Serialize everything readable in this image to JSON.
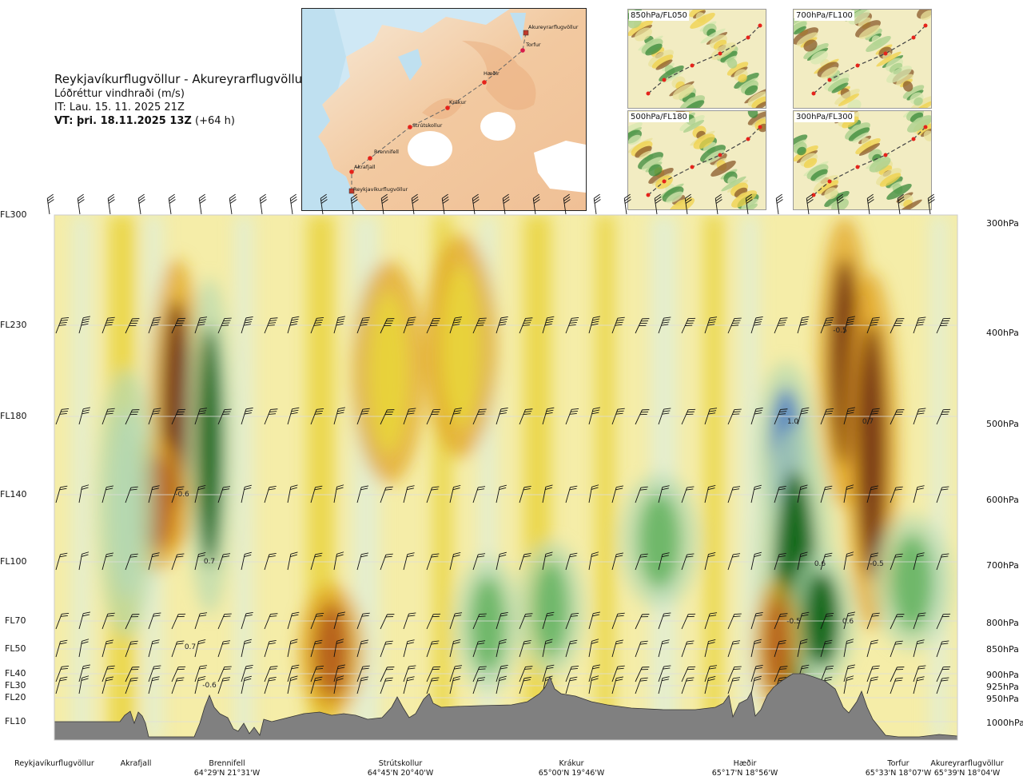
{
  "header": {
    "route": "Reykjavíkurflugvöllur - Akureyrarflugvöllur",
    "parameter": "Lóðréttur vindhraði (m/s)",
    "issue_time": "IT: Lau. 15. 11. 2025 21Z",
    "valid_prefix": "VT: þri. 18.11.2025 13Z",
    "valid_suffix": "(+64 h)"
  },
  "map": {
    "waypoints": [
      {
        "name": "Akureyrarflugvöllur"
      },
      {
        "name": "Torfur"
      },
      {
        "name": "Hæðir"
      },
      {
        "name": "Krákur"
      },
      {
        "name": "Strútskollur"
      },
      {
        "name": "Brennifell"
      },
      {
        "name": "Akrafjall"
      },
      {
        "name": "Reykjavíkurflugvöllur"
      }
    ]
  },
  "thumbnails": [
    {
      "label": "850hPa/FL050"
    },
    {
      "label": "700hPa/FL100"
    },
    {
      "label": "500hPa/FL180"
    },
    {
      "label": "300hPa/FL300"
    }
  ],
  "left_axis": [
    "FL300",
    "FL230",
    "FL180",
    "FL140",
    "FL100",
    "FL70",
    "FL50",
    "FL40",
    "FL30",
    "FL20",
    "FL10"
  ],
  "right_axis": [
    "300hPa",
    "400hPa",
    "500hPa",
    "600hPa",
    "700hPa",
    "800hPa",
    "850hPa",
    "900hPa",
    "925hPa",
    "950hPa",
    "1000hPa"
  ],
  "bottom_locations": [
    {
      "name": "Reykjavíkurflugvöllur",
      "coord": ""
    },
    {
      "name": "Akrafjall",
      "coord": ""
    },
    {
      "name": "Brennifell",
      "coord": "64°29'N 21°31'W"
    },
    {
      "name": "Strútskollur",
      "coord": "64°45'N 20°40'W"
    },
    {
      "name": "Krákur",
      "coord": "65°00'N 19°46'W"
    },
    {
      "name": "Hæðir",
      "coord": "65°17'N 18°56'W"
    },
    {
      "name": "Torfur",
      "coord": "65°33'N 18°07'W"
    },
    {
      "name": "Akureyrarflugvöllur",
      "coord": "65°39'N 18°04'W"
    }
  ],
  "colors": {
    "strong_down": "#7a3a12",
    "down3": "#b8641c",
    "down2": "#e0a01e",
    "down1": "#e8d23a",
    "weak_down": "#f5eda8",
    "weak_up": "#e0eed8",
    "up1": "#b5d8b0",
    "up2": "#6fb86a",
    "up3": "#1a8a2a",
    "up4": "#126b1e",
    "strong_up": "#5a88c0",
    "terrain": "#808080"
  },
  "chart_data": {
    "type": "heatmap",
    "title": "Lóðréttur vindhraði (m/s)",
    "xlabel": "",
    "ylabel": "",
    "x_stations": [
      "Reykjavíkurflugvöllur",
      "Akrafjall",
      "Brennifell",
      "Strútskollur",
      "Krákur",
      "Hæðir",
      "Torfur",
      "Akureyrarflugvöllur"
    ],
    "y_levels_hPa": [
      300,
      400,
      500,
      600,
      700,
      800,
      850,
      900,
      925,
      950,
      1000
    ],
    "contour_labels": [
      "-0.6",
      "0.7",
      "0.7",
      "-0.6",
      "-0.5",
      "1.0",
      "0.7",
      "0.6",
      "-0.5",
      "-0.5",
      "0.6"
    ],
    "blobs": [
      {
        "x": 0.135,
        "y": 0.36,
        "value": -0.6
      },
      {
        "x": 0.172,
        "y": 0.44,
        "value": 0.7
      },
      {
        "x": 0.112,
        "y": 0.55,
        "value": -0.4
      },
      {
        "x": 0.307,
        "y": 0.83,
        "value": -0.4
      },
      {
        "x": 0.37,
        "y": 0.3,
        "value": -0.2
      },
      {
        "x": 0.45,
        "y": 0.25,
        "value": -0.2
      },
      {
        "x": 0.08,
        "y": 0.55,
        "value": 0.2
      },
      {
        "x": 0.48,
        "y": 0.78,
        "value": 0.25
      },
      {
        "x": 0.55,
        "y": 0.75,
        "value": 0.25
      },
      {
        "x": 0.67,
        "y": 0.62,
        "value": 0.3
      },
      {
        "x": 0.81,
        "y": 0.45,
        "value": 1.0
      },
      {
        "x": 0.82,
        "y": 0.7,
        "value": 0.8
      },
      {
        "x": 0.85,
        "y": 0.77,
        "value": 0.6
      },
      {
        "x": 0.875,
        "y": 0.28,
        "value": -0.6
      },
      {
        "x": 0.905,
        "y": 0.45,
        "value": -0.7
      },
      {
        "x": 0.8,
        "y": 0.82,
        "value": -0.5
      },
      {
        "x": 0.95,
        "y": 0.7,
        "value": 0.3
      }
    ]
  }
}
